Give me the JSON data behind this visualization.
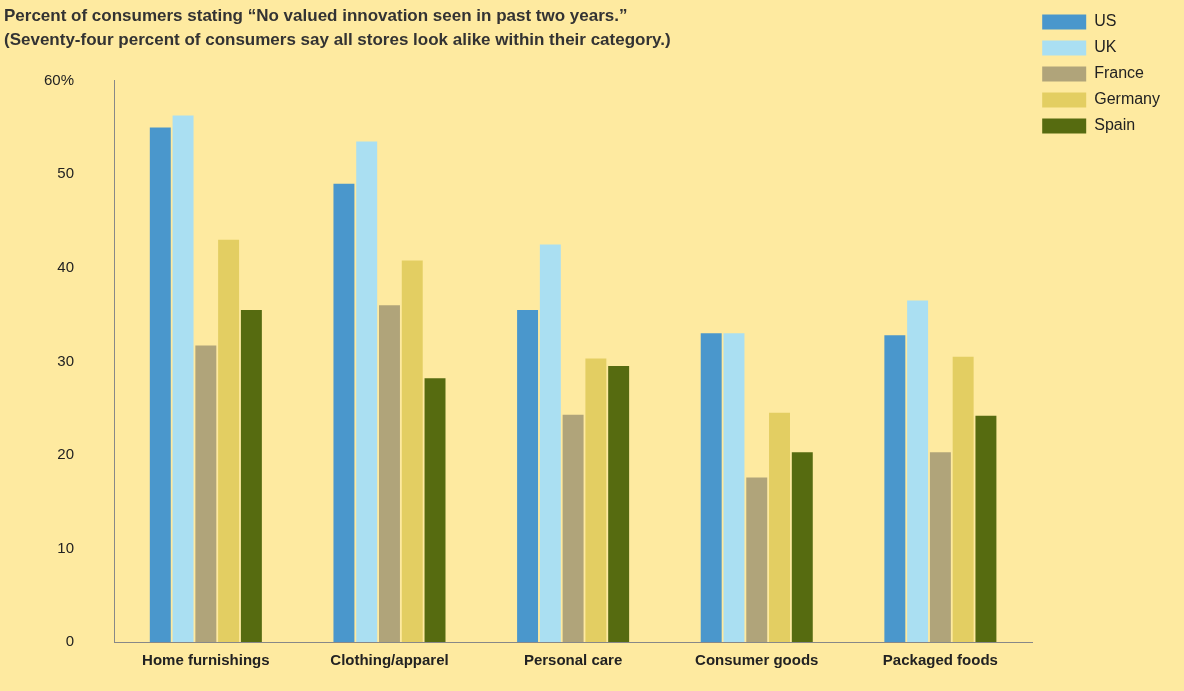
{
  "chart_data": {
    "type": "bar",
    "title": "Percent of consumers stating “No valued innovation seen in past two years.”",
    "subtitle": "(Seventy-four percent of consumers say all stores look alike within their category.)",
    "categories": [
      "Home furnishings",
      "Clothing/apparel",
      "Personal care",
      "Consumer goods",
      "Packaged foods"
    ],
    "series": [
      {
        "name": "US",
        "color": "#4a97cc",
        "values": [
          55,
          49,
          35.5,
          33,
          32.8
        ]
      },
      {
        "name": "UK",
        "color": "#aadff2",
        "values": [
          56.3,
          53.5,
          42.5,
          33,
          36.5
        ]
      },
      {
        "name": "France",
        "color": "#b0a47a",
        "values": [
          31.7,
          36,
          24.3,
          17.6,
          20.3
        ]
      },
      {
        "name": "Germany",
        "color": "#e3ce62",
        "values": [
          43,
          40.8,
          30.3,
          24.5,
          30.5
        ]
      },
      {
        "name": "Spain",
        "color": "#566b10",
        "values": [
          35.5,
          28.2,
          29.5,
          20.3,
          24.2
        ]
      }
    ],
    "ylim": [
      0,
      60
    ],
    "yticks": [
      0,
      10,
      20,
      30,
      40,
      50,
      {
        "value": 60,
        "label": "60%"
      }
    ],
    "grid": false,
    "legend": "top right"
  }
}
